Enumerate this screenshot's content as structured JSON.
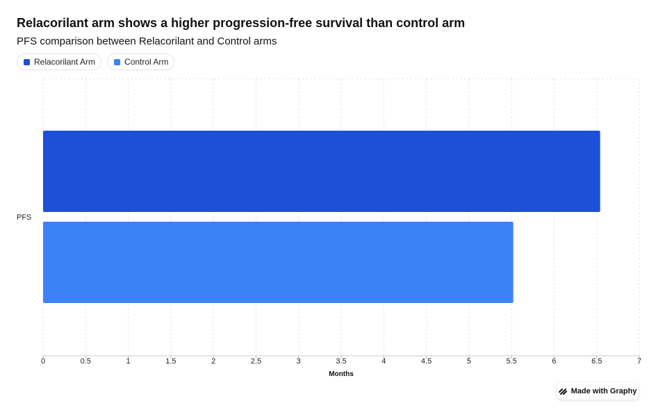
{
  "chart_data": {
    "type": "bar",
    "orientation": "horizontal",
    "title": "Relacorilant arm shows a higher progression-free survival than control arm",
    "subtitle": "PFS comparison between Relacorilant and Control arms",
    "categories": [
      "PFS"
    ],
    "series": [
      {
        "name": "Relacorilant Arm",
        "values": [
          6.54
        ],
        "color": "#1e4fd8"
      },
      {
        "name": "Control Arm",
        "values": [
          5.52
        ],
        "color": "#3b82f6"
      }
    ],
    "xlabel": "Months",
    "ylabel": "",
    "xlim": [
      0,
      7
    ],
    "xticks": [
      "0",
      "0.5",
      "1",
      "1.5",
      "2",
      "2.5",
      "3",
      "3.5",
      "4",
      "4.5",
      "5",
      "5.5",
      "6",
      "6.5",
      "7"
    ],
    "grid": true,
    "legend_position": "top-left"
  },
  "badge": {
    "label": "Made with Graphy",
    "icon": "graphy-logo-icon"
  }
}
